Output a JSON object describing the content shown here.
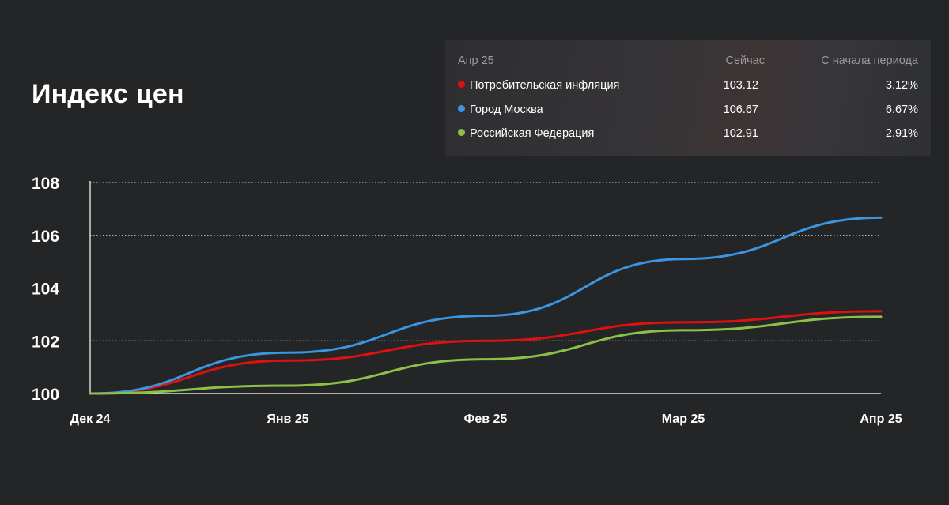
{
  "page": {
    "title": "Индекс цен"
  },
  "legend": {
    "period": "Апр 25",
    "col_now": "Сейчас",
    "col_since": "С начала периода",
    "rows": [
      {
        "label": "Потребительская инфляция",
        "now": "103.12",
        "since": "3.12%",
        "color": "#e01010"
      },
      {
        "label": "Город Москва",
        "now": "106.67",
        "since": "6.67%",
        "color": "#3b95e3"
      },
      {
        "label": "Российская Федерация",
        "now": "102.91",
        "since": "2.91%",
        "color": "#8cc049"
      }
    ]
  },
  "chart_data": {
    "type": "line",
    "x": [
      "Дек 24",
      "Янв 25",
      "Фев 25",
      "Мар 25",
      "Апр 25"
    ],
    "ylim": [
      100,
      108
    ],
    "yticks": [
      "100",
      "102",
      "104",
      "106",
      "108"
    ],
    "grid": true,
    "series": [
      {
        "name": "Потребительская инфляция",
        "color": "#e01010",
        "values": [
          100.0,
          101.25,
          102.0,
          102.7,
          103.12
        ]
      },
      {
        "name": "Город Москва",
        "color": "#3b95e3",
        "values": [
          100.0,
          101.55,
          102.95,
          105.1,
          106.67
        ]
      },
      {
        "name": "Российская Федерация",
        "color": "#8cc049",
        "values": [
          100.0,
          100.3,
          101.3,
          102.4,
          102.91
        ]
      }
    ]
  }
}
